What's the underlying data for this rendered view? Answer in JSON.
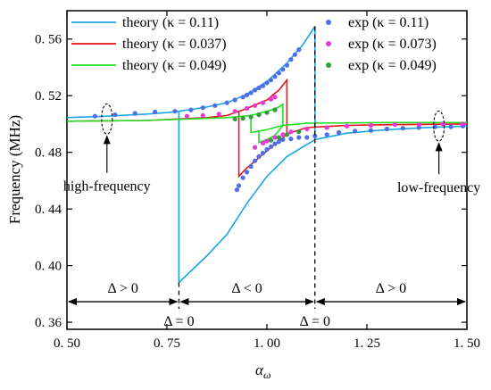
{
  "chart_data": {
    "type": "line",
    "xlabel": "α_ω",
    "ylabel": "Frequency (MHz)",
    "xlim": [
      0.5,
      1.5
    ],
    "ylim": [
      0.355,
      0.58
    ],
    "xticks": [
      {
        "v": 0.5,
        "label": "0. 50"
      },
      {
        "v": 0.75,
        "label": "0. 75"
      },
      {
        "v": 1.0,
        "label": "1. 00"
      },
      {
        "v": 1.25,
        "label": "1. 25"
      },
      {
        "v": 1.5,
        "label": "1. 50"
      }
    ],
    "yticks": [
      {
        "v": 0.36,
        "label": "0. 36"
      },
      {
        "v": 0.4,
        "label": "0. 40"
      },
      {
        "v": 0.44,
        "label": "0. 44"
      },
      {
        "v": 0.48,
        "label": "0. 48"
      },
      {
        "v": 0.52,
        "label": "0. 52"
      },
      {
        "v": 0.56,
        "label": "0. 56"
      }
    ],
    "grid": false,
    "legend_placement": "top",
    "legend": [
      {
        "label": "theory (κ = 0.11)",
        "color": "#1aa6e6",
        "kind": "line"
      },
      {
        "label": "theory (κ = 0.037)",
        "color": "#e8141b",
        "kind": "line"
      },
      {
        "label": "theory (κ = 0.049)",
        "color": "#22dd22",
        "kind": "line"
      },
      {
        "label": "exp (κ = 0.11)",
        "color": "#4f6fe6",
        "kind": "marker"
      },
      {
        "label": "exp (κ = 0.073)",
        "color": "#e33ad9",
        "kind": "marker"
      },
      {
        "label": "exp (κ = 0.049)",
        "color": "#2f9e3a",
        "kind": "marker"
      }
    ],
    "theory_series": [
      {
        "name": "theory (κ = 0.11)",
        "color": "#1aa6e6",
        "segments": [
          [
            [
              0.5,
              0.5045
            ],
            [
              0.6,
              0.5055
            ],
            [
              0.7,
              0.507
            ],
            [
              0.75,
              0.508
            ],
            [
              0.78,
              0.509
            ]
          ],
          [
            [
              0.78,
              0.509
            ],
            [
              0.85,
              0.512
            ],
            [
              0.9,
              0.515
            ],
            [
              0.95,
              0.521
            ],
            [
              1.0,
              0.53
            ],
            [
              1.05,
              0.543
            ],
            [
              1.09,
              0.556
            ],
            [
              1.12,
              0.569
            ]
          ],
          [
            [
              1.12,
              0.569
            ],
            [
              1.12,
              0.489
            ],
            [
              1.2,
              0.4935
            ],
            [
              1.3,
              0.496
            ],
            [
              1.4,
              0.4975
            ],
            [
              1.5,
              0.4985
            ]
          ],
          [
            [
              0.78,
              0.509
            ],
            [
              0.78,
              0.388
            ],
            [
              0.85,
              0.407
            ],
            [
              0.9,
              0.422
            ],
            [
              0.95,
              0.444
            ],
            [
              1.0,
              0.463
            ],
            [
              1.05,
              0.477
            ],
            [
              1.1,
              0.4855
            ],
            [
              1.12,
              0.489
            ]
          ]
        ]
      },
      {
        "name": "theory (κ = 0.037)",
        "color": "#e8141b",
        "segments": [
          [
            [
              0.93,
              0.509
            ],
            [
              0.95,
              0.511
            ],
            [
              1.0,
              0.517
            ],
            [
              1.03,
              0.524
            ],
            [
              1.05,
              0.531
            ],
            [
              1.05,
              0.493
            ],
            [
              1.1,
              0.4975
            ],
            [
              1.2,
              0.499
            ],
            [
              1.3,
              0.4995
            ],
            [
              1.5,
              0.5
            ]
          ],
          [
            [
              0.5,
              0.502
            ],
            [
              0.7,
              0.5025
            ],
            [
              0.85,
              0.5045
            ],
            [
              0.9,
              0.506
            ],
            [
              0.93,
              0.509
            ],
            [
              0.93,
              0.463
            ],
            [
              0.95,
              0.469
            ],
            [
              1.0,
              0.481
            ],
            [
              1.03,
              0.488
            ],
            [
              1.05,
              0.493
            ]
          ]
        ]
      },
      {
        "name": "theory (κ = 0.049)",
        "color": "#22dd22",
        "segments": [
          [
            [
              0.5,
              0.502
            ],
            [
              0.7,
              0.5025
            ],
            [
              0.9,
              0.5045
            ],
            [
              0.96,
              0.506
            ],
            [
              0.96,
              0.494
            ],
            [
              0.98,
              0.495
            ]
          ],
          [
            [
              0.96,
              0.506
            ],
            [
              1.0,
              0.509
            ],
            [
              1.03,
              0.512
            ],
            [
              1.04,
              0.514
            ],
            [
              1.04,
              0.499
            ],
            [
              1.1,
              0.5005
            ],
            [
              1.3,
              0.501
            ],
            [
              1.5,
              0.501
            ]
          ],
          [
            [
              0.98,
              0.495
            ],
            [
              0.98,
              0.487
            ],
            [
              1.0,
              0.489
            ],
            [
              1.02,
              0.492
            ],
            [
              1.04,
              0.499
            ]
          ],
          [
            [
              0.98,
              0.495
            ],
            [
              1.0,
              0.496
            ],
            [
              1.02,
              0.4975
            ],
            [
              1.04,
              0.499
            ]
          ]
        ]
      }
    ],
    "exp_series": [
      {
        "name": "exp (κ = 0.11)",
        "color": "#4f6fe6",
        "points": [
          [
            0.57,
            0.5055
          ],
          [
            0.62,
            0.5065
          ],
          [
            0.67,
            0.5075
          ],
          [
            0.72,
            0.5085
          ],
          [
            0.77,
            0.509
          ],
          [
            0.81,
            0.51
          ],
          [
            0.84,
            0.5115
          ],
          [
            0.87,
            0.513
          ],
          [
            0.9,
            0.515
          ],
          [
            0.92,
            0.517
          ],
          [
            0.94,
            0.519
          ],
          [
            0.95,
            0.5205
          ],
          [
            0.96,
            0.522
          ],
          [
            0.97,
            0.524
          ],
          [
            0.98,
            0.5255
          ],
          [
            0.99,
            0.527
          ],
          [
            1.0,
            0.529
          ],
          [
            1.01,
            0.531
          ],
          [
            1.02,
            0.5335
          ],
          [
            1.03,
            0.536
          ],
          [
            1.04,
            0.5385
          ],
          [
            1.05,
            0.5415
          ],
          [
            1.06,
            0.5455
          ],
          [
            1.07,
            0.549
          ],
          [
            1.08,
            0.5525
          ],
          [
            0.925,
            0.4535
          ],
          [
            0.93,
            0.4565
          ],
          [
            0.94,
            0.462
          ],
          [
            0.95,
            0.466
          ],
          [
            0.96,
            0.47
          ],
          [
            0.97,
            0.474
          ],
          [
            0.98,
            0.477
          ],
          [
            0.99,
            0.4795
          ],
          [
            1.0,
            0.482
          ],
          [
            1.01,
            0.484
          ],
          [
            1.02,
            0.486
          ],
          [
            1.03,
            0.4875
          ],
          [
            1.04,
            0.489
          ],
          [
            1.06,
            0.4895
          ],
          [
            1.08,
            0.4905
          ],
          [
            1.1,
            0.4905
          ],
          [
            1.12,
            0.4915
          ],
          [
            1.15,
            0.4925
          ],
          [
            1.18,
            0.494
          ],
          [
            1.22,
            0.495
          ],
          [
            1.26,
            0.4955
          ],
          [
            1.3,
            0.4965
          ],
          [
            1.34,
            0.497
          ],
          [
            1.38,
            0.4975
          ],
          [
            1.42,
            0.498
          ],
          [
            1.46,
            0.498
          ],
          [
            1.49,
            0.4985
          ]
        ]
      },
      {
        "name": "exp (κ = 0.073)",
        "color": "#e33ad9",
        "points": [
          [
            0.8,
            0.5055
          ],
          [
            0.84,
            0.506
          ],
          [
            0.88,
            0.507
          ],
          [
            0.92,
            0.509
          ],
          [
            0.95,
            0.511
          ],
          [
            0.97,
            0.513
          ],
          [
            0.99,
            0.515
          ],
          [
            1.01,
            0.5175
          ],
          [
            1.02,
            0.519
          ],
          [
            0.97,
            0.4835
          ],
          [
            0.99,
            0.4865
          ],
          [
            1.0,
            0.488
          ],
          [
            1.02,
            0.4905
          ],
          [
            1.04,
            0.4925
          ],
          [
            1.06,
            0.4945
          ],
          [
            1.1,
            0.4965
          ],
          [
            1.15,
            0.4975
          ],
          [
            1.2,
            0.4985
          ],
          [
            1.26,
            0.499
          ],
          [
            1.32,
            0.4995
          ],
          [
            1.38,
            0.4995
          ],
          [
            1.44,
            0.5
          ],
          [
            1.49,
            0.5
          ]
        ]
      },
      {
        "name": "exp (κ = 0.049)",
        "color": "#2f9e3a",
        "points": [
          [
            0.92,
            0.5035
          ],
          [
            0.94,
            0.504
          ],
          [
            0.96,
            0.505
          ],
          [
            0.98,
            0.5065
          ],
          [
            1.0,
            0.508
          ],
          [
            1.02,
            0.51
          ],
          [
            1.01,
            0.4885
          ],
          [
            1.03,
            0.4905
          ],
          [
            1.05,
            0.4925
          ],
          [
            1.08,
            0.4945
          ]
        ]
      }
    ],
    "regions": [
      {
        "label": "Δ > 0",
        "x_from": 0.5,
        "x_to": 0.78
      },
      {
        "label": "Δ < 0",
        "x_from": 0.78,
        "x_to": 1.12
      },
      {
        "label": "Δ > 0",
        "x_from": 1.12,
        "x_to": 1.5
      }
    ],
    "boundaries": [
      {
        "x": 0.78,
        "label": "Δ = 0",
        "y_top": 0.388
      },
      {
        "x": 1.12,
        "label": "Δ = 0",
        "y_top": 0.569
      }
    ],
    "region_arrow_y": 0.3745,
    "annotations": [
      {
        "text": "high-frequency",
        "ellipse_at": [
          0.6,
          0.5035
        ],
        "arrow_to": [
          0.6,
          0.4945
        ]
      },
      {
        "text": "low-frequency",
        "ellipse_at": [
          1.43,
          0.4985
        ],
        "arrow_to": [
          1.43,
          0.4935
        ]
      }
    ]
  }
}
